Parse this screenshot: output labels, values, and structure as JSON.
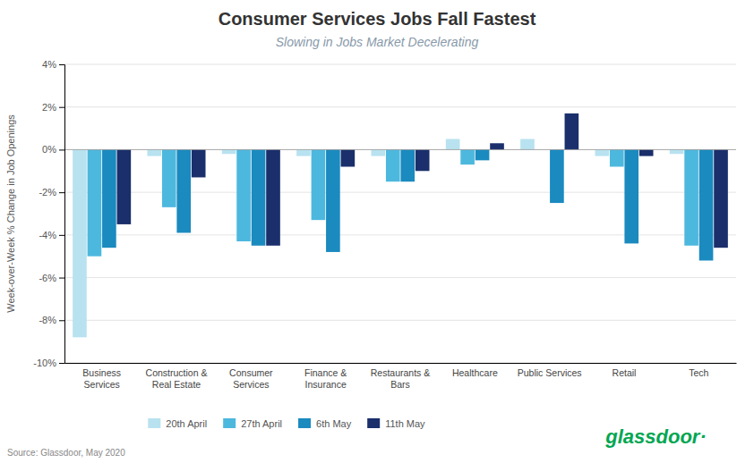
{
  "chart_data": {
    "type": "bar",
    "title": "Consumer Services Jobs Fall Fastest",
    "subtitle": "Slowing in Jobs Market Decelerating",
    "ylabel": "Week-over-Week % Change in Job Openings",
    "source": "Source: Glassdoor, May 2020",
    "annotations": [
      {
        "text": "glassdoor·",
        "color": "#00a651"
      }
    ],
    "categories": [
      "Business\nServices",
      "Construction &\nReal Estate",
      "Consumer\nServices",
      "Finance &\nInsurance",
      "Restaurants &\nBars",
      "Healthcare",
      "Public Services",
      "Retail",
      "Tech"
    ],
    "series": [
      {
        "name": "20th April",
        "color": "#b8e2f0",
        "values": [
          -8.8,
          -0.3,
          -0.2,
          -0.3,
          -0.3,
          0.5,
          0.5,
          -0.3,
          -0.2
        ]
      },
      {
        "name": "27th April",
        "color": "#4db8de",
        "values": [
          -5.0,
          -2.7,
          -4.3,
          -3.3,
          -1.5,
          -0.7,
          0.0,
          -0.8,
          -4.5
        ]
      },
      {
        "name": "6th May",
        "color": "#1a8abf",
        "values": [
          -4.6,
          -3.9,
          -4.5,
          -4.8,
          -1.5,
          -0.5,
          -2.5,
          -4.4,
          -5.2
        ]
      },
      {
        "name": "11th May",
        "color": "#1a2f6b",
        "values": [
          -3.5,
          -1.3,
          -4.5,
          -0.8,
          -1.0,
          0.3,
          1.7,
          -0.3,
          -4.6
        ]
      }
    ],
    "ylim": [
      -10,
      4
    ],
    "yticks": [
      {
        "value": -10,
        "label": "-10%"
      },
      {
        "value": -8,
        "label": "-8%"
      },
      {
        "value": -6,
        "label": "-6%"
      },
      {
        "value": -4,
        "label": "-4%"
      },
      {
        "value": -2,
        "label": "-2%"
      },
      {
        "value": 0,
        "label": "0%"
      },
      {
        "value": 2,
        "label": "2%"
      },
      {
        "value": 4,
        "label": "4%"
      }
    ],
    "grid": true,
    "legend": "bottom"
  }
}
